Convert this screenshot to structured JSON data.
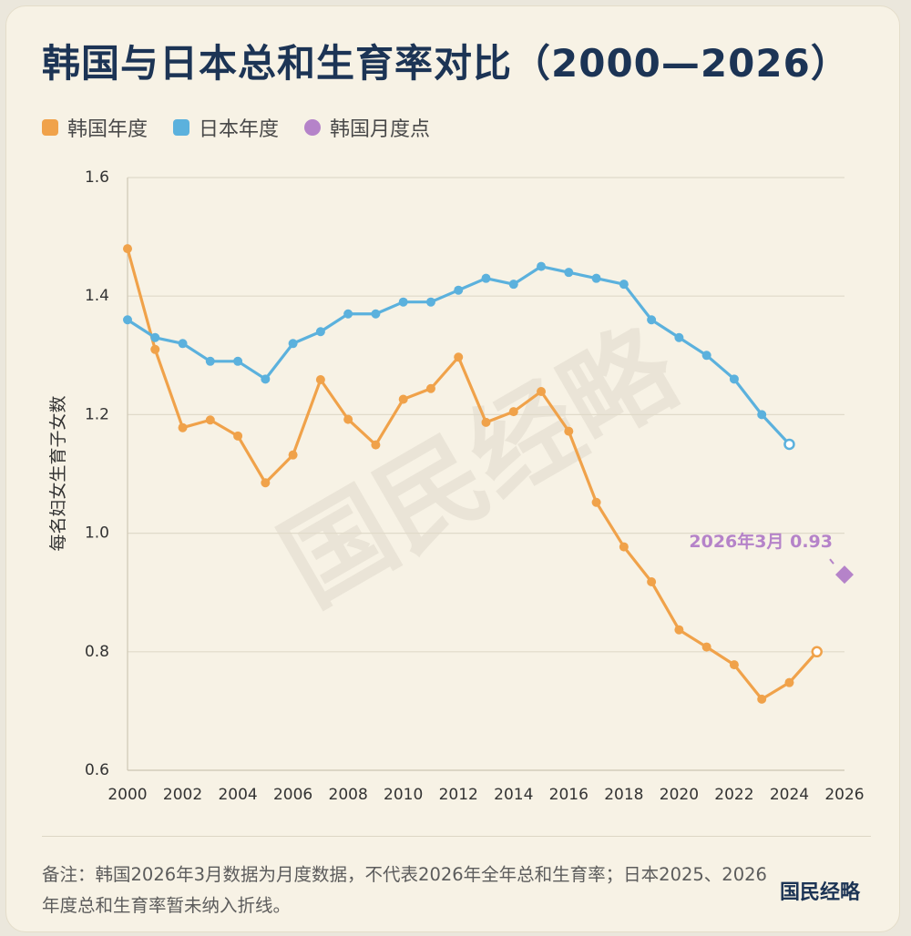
{
  "title": "韩国与日本总和生育率对比（2000—2026）",
  "legend": [
    {
      "label": "韩国年度",
      "color": "#f0a24a",
      "shape": "square"
    },
    {
      "label": "日本年度",
      "color": "#5bb1dd",
      "shape": "square"
    },
    {
      "label": "韩国月度点",
      "color": "#b583c9",
      "shape": "circle"
    }
  ],
  "note": "备注：韩国2026年3月数据为月度数据，不代表2026年全年总和生育率；日本2025、2026年度总和生育率暂未纳入折线。",
  "brand": "国民经略",
  "watermark": "国民经略",
  "chart_data": {
    "type": "line",
    "ylabel": "每名妇女生育子女数",
    "xlabel": "",
    "ylim": [
      0.6,
      1.6
    ],
    "yticks": [
      "0.6",
      "0.8",
      "1.0",
      "1.2",
      "1.4",
      "1.6"
    ],
    "xlim": [
      2000,
      2026
    ],
    "xticks": [
      "2000",
      "2002",
      "2004",
      "2006",
      "2008",
      "2010",
      "2012",
      "2014",
      "2016",
      "2018",
      "2020",
      "2022",
      "2024",
      "2026"
    ],
    "grid": "horizontal",
    "series": [
      {
        "name": "韩国年度",
        "color": "#f0a24a",
        "x": [
          2000,
          2001,
          2002,
          2003,
          2004,
          2005,
          2006,
          2007,
          2008,
          2009,
          2010,
          2011,
          2012,
          2013,
          2014,
          2015,
          2016,
          2017,
          2018,
          2019,
          2020,
          2021,
          2022,
          2023,
          2024,
          2025
        ],
        "values": [
          1.48,
          1.31,
          1.178,
          1.191,
          1.164,
          1.085,
          1.132,
          1.259,
          1.192,
          1.149,
          1.226,
          1.244,
          1.297,
          1.187,
          1.205,
          1.239,
          1.172,
          1.052,
          0.977,
          0.918,
          0.837,
          0.808,
          0.778,
          0.72,
          0.748,
          0.8
        ]
      },
      {
        "name": "日本年度",
        "color": "#5bb1dd",
        "x": [
          2000,
          2001,
          2002,
          2003,
          2004,
          2005,
          2006,
          2007,
          2008,
          2009,
          2010,
          2011,
          2012,
          2013,
          2014,
          2015,
          2016,
          2017,
          2018,
          2019,
          2020,
          2021,
          2022,
          2023,
          2024
        ],
        "values": [
          1.36,
          1.33,
          1.32,
          1.29,
          1.29,
          1.26,
          1.32,
          1.34,
          1.37,
          1.37,
          1.39,
          1.39,
          1.41,
          1.43,
          1.42,
          1.45,
          1.44,
          1.43,
          1.42,
          1.36,
          1.33,
          1.3,
          1.26,
          1.2,
          1.15
        ]
      }
    ],
    "points": [
      {
        "name": "韩国月度点",
        "color": "#b583c9",
        "x": 2026.0,
        "value": 0.93,
        "label": "2026年3月 0.93"
      }
    ]
  }
}
